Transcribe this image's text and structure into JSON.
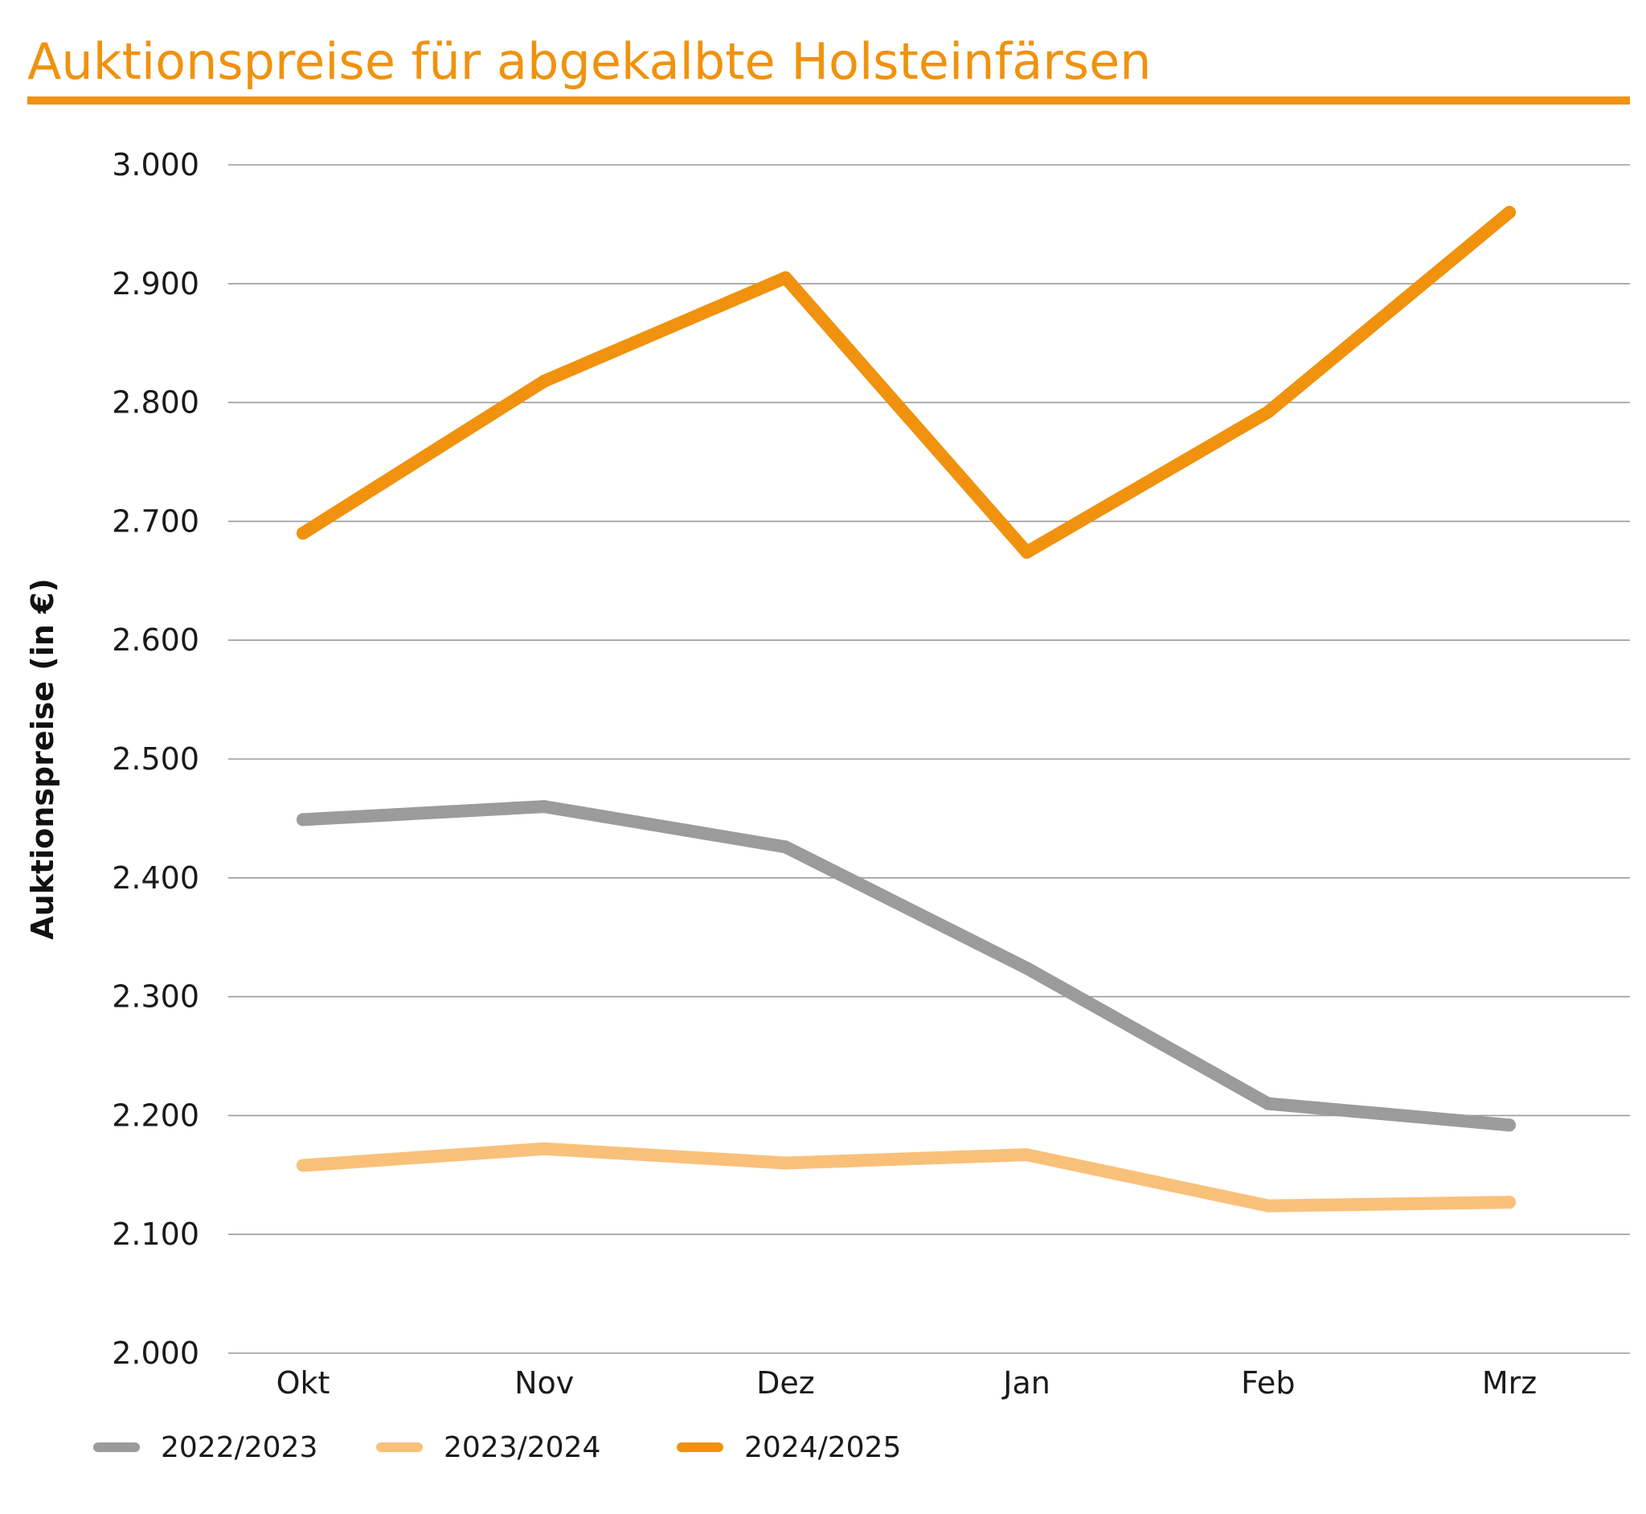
{
  "chart_data": {
    "type": "line",
    "title": "Auktionspreise für abgekalbte Holsteinfärsen",
    "ylabel": "Auktionspreise (in €)",
    "xlabel": "",
    "categories": [
      "Okt",
      "Nov",
      "Dez",
      "Jan",
      "Feb",
      "Mrz"
    ],
    "ylim": [
      2000,
      3000
    ],
    "yticks": [
      2000,
      2100,
      2200,
      2300,
      2400,
      2500,
      2600,
      2700,
      2800,
      2900,
      3000
    ],
    "ytick_labels": [
      "2.000",
      "2.100",
      "2.200",
      "2.300",
      "2.400",
      "2.500",
      "2.600",
      "2.700",
      "2.800",
      "2.900",
      "3.000"
    ],
    "grid": true,
    "legend_position": "bottom-left",
    "series": [
      {
        "name": "2022/2023",
        "color": "#9b9b9b",
        "values": [
          2449,
          2460,
          2426,
          2324,
          2210,
          2192
        ]
      },
      {
        "name": "2023/2024",
        "color": "#f9c07a",
        "values": [
          2158,
          2172,
          2160,
          2167,
          2124,
          2127
        ]
      },
      {
        "name": "2024/2025",
        "color": "#f0920e",
        "values": [
          2690,
          2818,
          2905,
          2674,
          2792,
          2960
        ]
      }
    ],
    "colors": {
      "title": "#f0920e",
      "title_rule": "#f0920e",
      "grid": "#9a9a9a"
    }
  }
}
